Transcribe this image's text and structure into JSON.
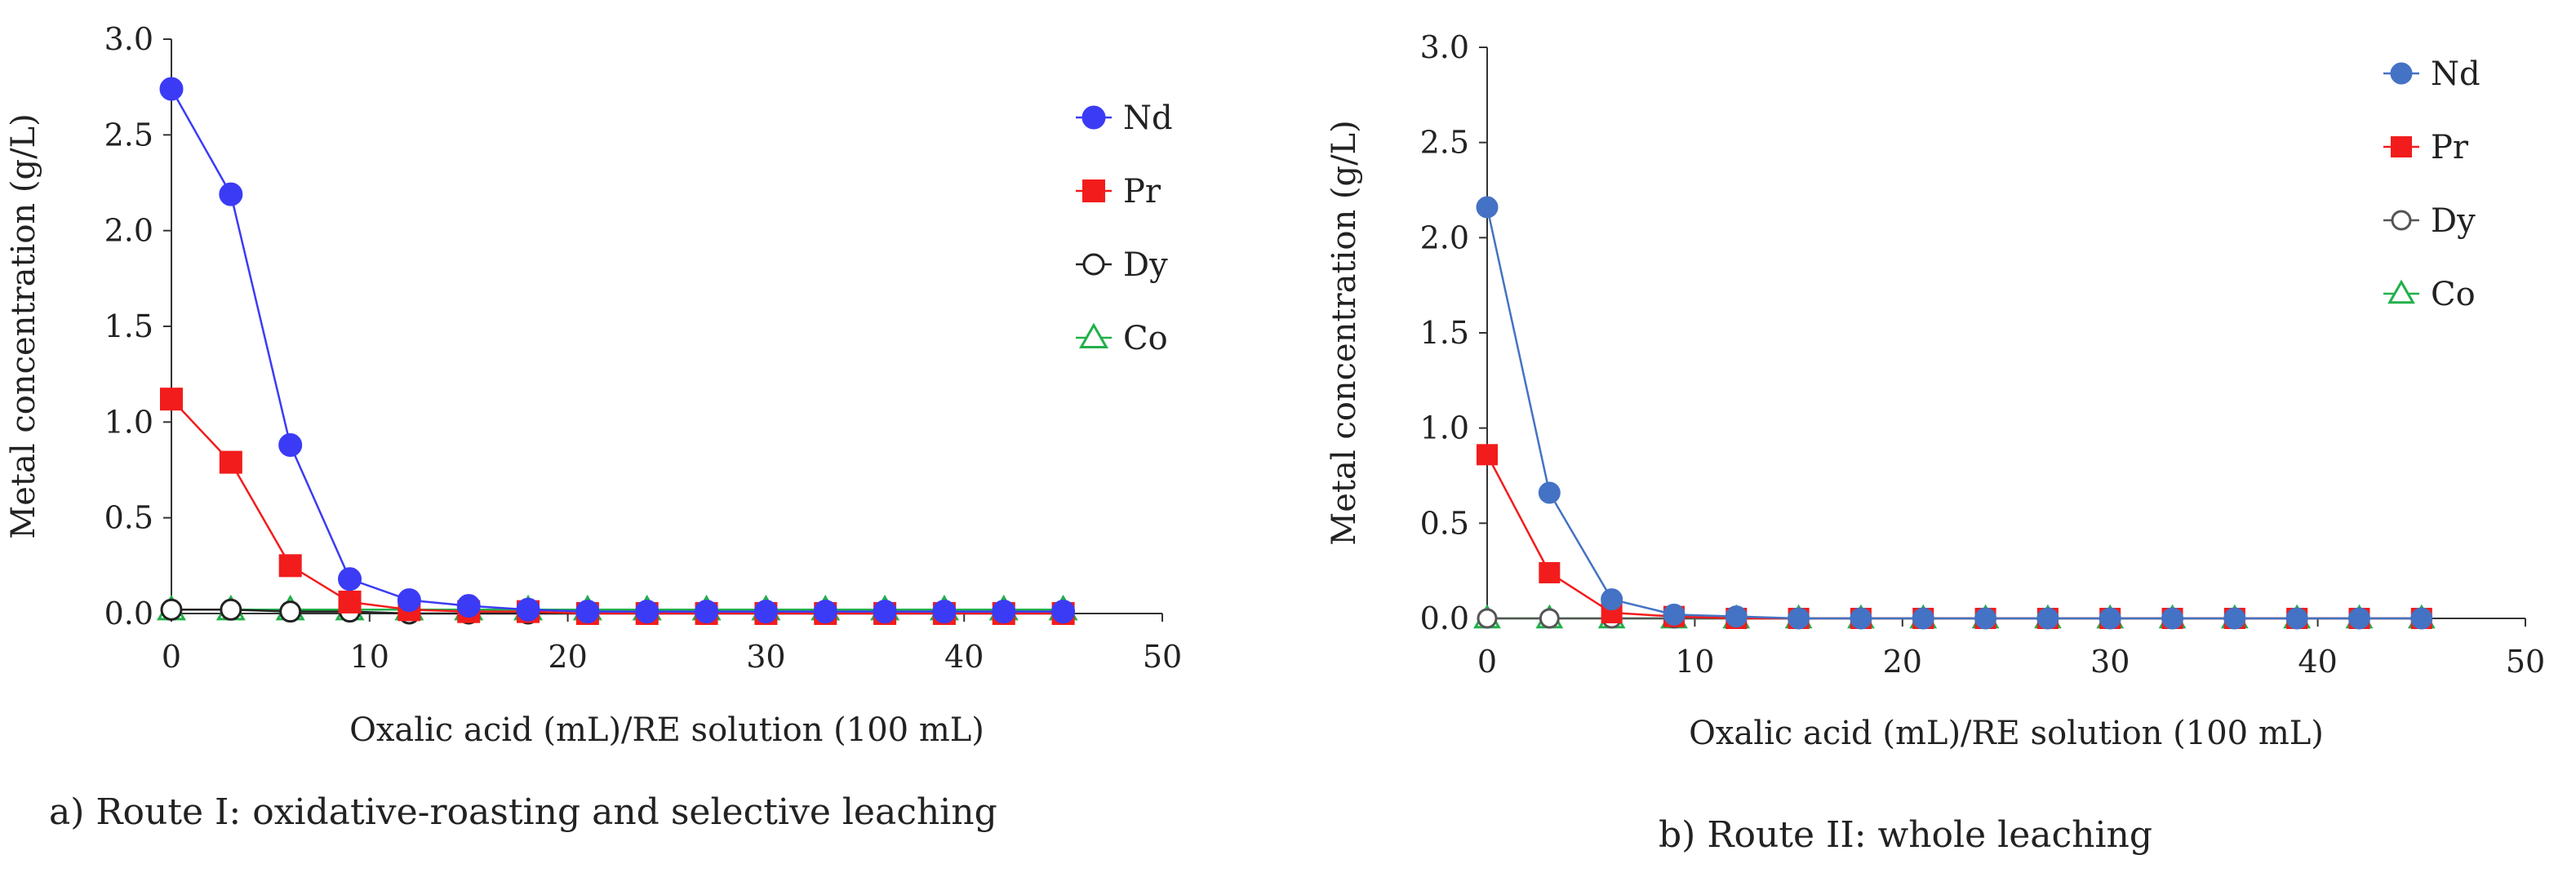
{
  "chart_data": [
    {
      "type": "line",
      "caption": "a) Route I: oxidative-roasting and selective leaching",
      "xlabel": "Oxalic acid (mL)/RE solution (100 mL)",
      "ylabel": "Metal concentration (g/L)",
      "xlim": [
        0,
        50
      ],
      "ylim": [
        0,
        3.0
      ],
      "xticks": [
        "0",
        "10",
        "20",
        "30",
        "40",
        "50"
      ],
      "yticks": [
        "0.0",
        "0.5",
        "1.0",
        "1.5",
        "2.0",
        "2.5",
        "3.0"
      ],
      "grid": false,
      "legend_position": "right",
      "x": [
        0,
        3,
        6,
        9,
        12,
        15,
        18,
        21,
        24,
        27,
        30,
        33,
        36,
        39,
        42,
        45
      ],
      "series": [
        {
          "name": "Nd",
          "marker": "filled-circle",
          "color": "#3b3bf5",
          "values": [
            2.74,
            2.19,
            0.88,
            0.18,
            0.07,
            0.04,
            0.02,
            0.01,
            0.01,
            0.01,
            0.01,
            0.01,
            0.01,
            0.01,
            0.01,
            0.01
          ]
        },
        {
          "name": "Pr",
          "marker": "filled-square",
          "color": "#f21c1c",
          "values": [
            1.12,
            0.79,
            0.25,
            0.06,
            0.02,
            0.01,
            0.01,
            0.0,
            0.0,
            0.0,
            0.0,
            0.0,
            0.0,
            0.0,
            0.0,
            0.0
          ]
        },
        {
          "name": "Dy",
          "marker": "open-circle",
          "color": "#222222",
          "values": [
            0.02,
            0.02,
            0.01,
            0.01,
            0.0,
            0.0,
            0.0,
            0.0,
            0.0,
            0.0,
            0.0,
            0.0,
            0.0,
            0.0,
            0.0,
            0.0
          ]
        },
        {
          "name": "Co",
          "marker": "open-triangle",
          "color": "#22b04a",
          "values": [
            0.02,
            0.02,
            0.02,
            0.02,
            0.02,
            0.02,
            0.02,
            0.02,
            0.02,
            0.02,
            0.02,
            0.02,
            0.02,
            0.02,
            0.02,
            0.02
          ]
        }
      ]
    },
    {
      "type": "line",
      "caption": "b) Route II: whole leaching",
      "xlabel": "Oxalic acid (mL)/RE solution (100 mL)",
      "ylabel": "Metal concentration (g/L)",
      "xlim": [
        0,
        50
      ],
      "ylim": [
        0,
        3.0
      ],
      "xticks": [
        "0",
        "10",
        "20",
        "30",
        "40",
        "50"
      ],
      "yticks": [
        "0.0",
        "0.5",
        "1.0",
        "1.5",
        "2.0",
        "2.5",
        "3.0"
      ],
      "grid": false,
      "legend_position": "top-right",
      "x": [
        0,
        3,
        6,
        9,
        12,
        15,
        18,
        21,
        24,
        27,
        30,
        33,
        36,
        39,
        42,
        45
      ],
      "series": [
        {
          "name": "Nd",
          "marker": "filled-circle",
          "color": "#4472c4",
          "values": [
            2.16,
            0.66,
            0.1,
            0.02,
            0.01,
            0.0,
            0.0,
            0.0,
            0.0,
            0.0,
            0.0,
            0.0,
            0.0,
            0.0,
            0.0,
            0.0
          ]
        },
        {
          "name": "Pr",
          "marker": "filled-square",
          "color": "#f21c1c",
          "values": [
            0.86,
            0.24,
            0.03,
            0.01,
            0.0,
            0.0,
            0.0,
            0.0,
            0.0,
            0.0,
            0.0,
            0.0,
            0.0,
            0.0,
            0.0,
            0.0
          ]
        },
        {
          "name": "Dy",
          "marker": "open-circle",
          "color": "#555555",
          "values": [
            0.0,
            0.0,
            0.0,
            0.0,
            0.0,
            0.0,
            0.0,
            0.0,
            0.0,
            0.0,
            0.0,
            0.0,
            0.0,
            0.0,
            0.0,
            0.0
          ]
        },
        {
          "name": "Co",
          "marker": "open-triangle",
          "color": "#22b04a",
          "values": [
            0.0,
            0.0,
            0.0,
            0.0,
            0.0,
            0.0,
            0.0,
            0.0,
            0.0,
            0.0,
            0.0,
            0.0,
            0.0,
            0.0,
            0.0,
            0.0
          ]
        }
      ]
    }
  ]
}
